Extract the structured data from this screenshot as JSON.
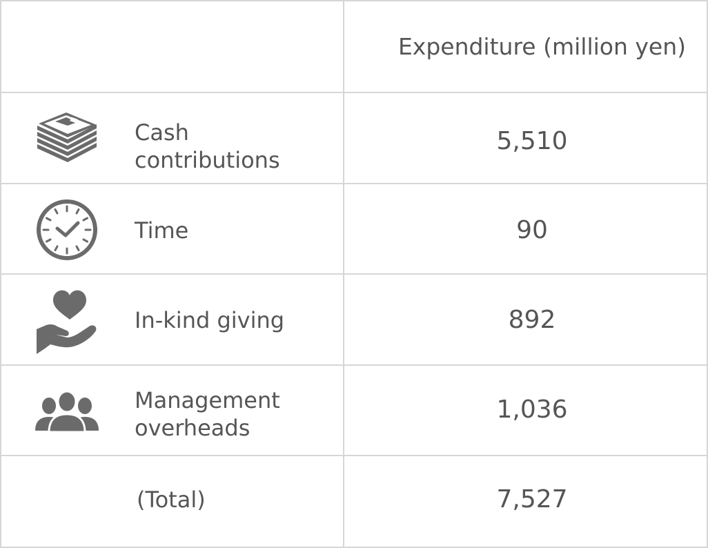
{
  "header": {
    "corner": "",
    "expenditure_label": "Expenditure (million yen)"
  },
  "rows": [
    {
      "icon": "money-stack-icon",
      "label_line1": "Cash",
      "label_line2": "contributions",
      "value": "5,510"
    },
    {
      "icon": "clock-icon",
      "label_line1": "Time",
      "label_line2": "",
      "value": "90"
    },
    {
      "icon": "heart-hand-icon",
      "label_line1": "In-kind giving",
      "label_line2": "",
      "value": "892"
    },
    {
      "icon": "people-group-icon",
      "label_line1": "Management",
      "label_line2": "overheads",
      "value": "1,036"
    }
  ],
  "total": {
    "label": "(Total)",
    "value": "7,527"
  },
  "colors": {
    "text": "#555555",
    "icon": "#6b6b6b",
    "border": "#d6d6d6"
  }
}
